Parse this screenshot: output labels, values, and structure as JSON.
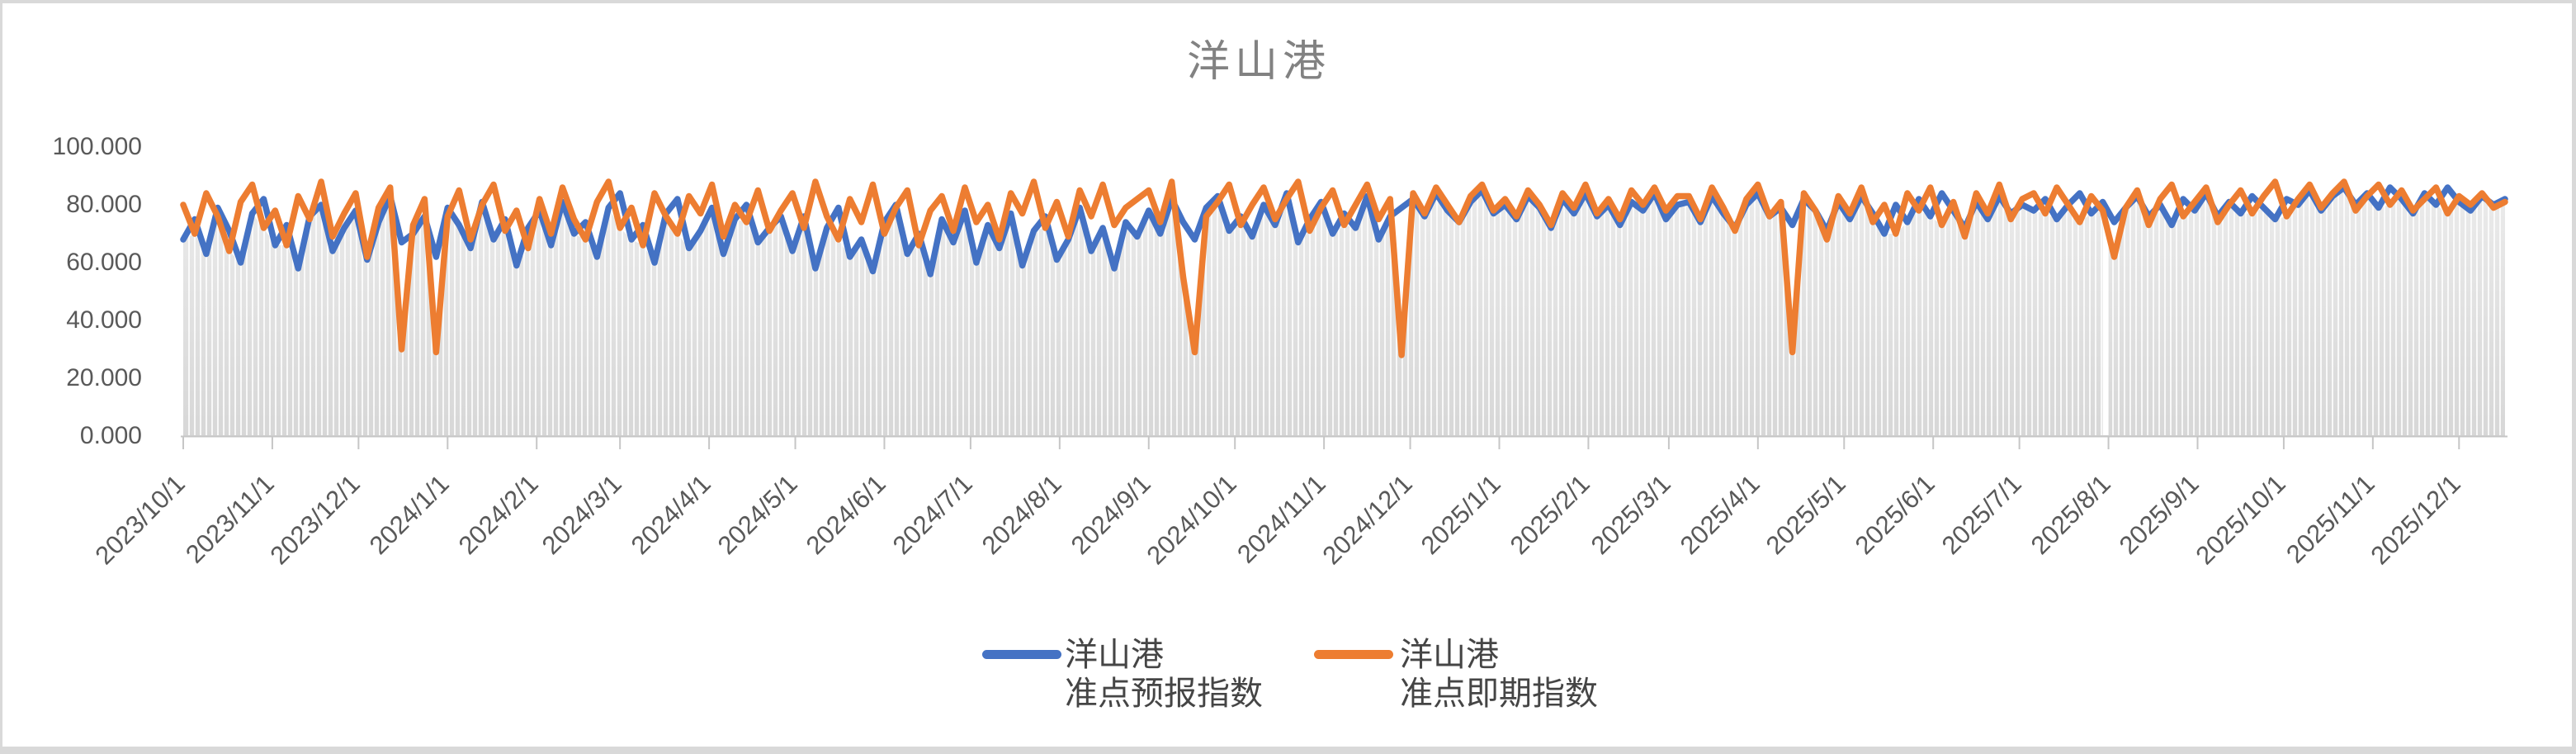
{
  "title": "洋山港",
  "colors": {
    "series_forecast": "#4472C4",
    "series_spot": "#ED7D31",
    "area_top": "#ebebeb",
    "area_bottom": "#d7d7d7",
    "axis_line": "#c6c6c6",
    "axis_text": "#595959",
    "title_text": "#828282",
    "legend_text": "#454545",
    "frame": "#d9d9d9",
    "stripe": "#ffffff"
  },
  "y_axis": {
    "labels": [
      "100.000",
      "80.000",
      "60.000",
      "40.000",
      "20.000",
      "0.000"
    ],
    "values": [
      100,
      80,
      60,
      40,
      20,
      0
    ]
  },
  "x_axis": {
    "ticks": [
      {
        "label": "2023/10/1",
        "day": 0
      },
      {
        "label": "2023/11/1",
        "day": 31
      },
      {
        "label": "2023/12/1",
        "day": 61
      },
      {
        "label": "2024/1/1",
        "day": 92
      },
      {
        "label": "2024/2/1",
        "day": 123
      },
      {
        "label": "2024/3/1",
        "day": 152
      },
      {
        "label": "2024/4/1",
        "day": 183
      },
      {
        "label": "2024/5/1",
        "day": 213
      },
      {
        "label": "2024/6/1",
        "day": 244
      },
      {
        "label": "2024/7/1",
        "day": 274
      },
      {
        "label": "2024/8/1",
        "day": 305
      },
      {
        "label": "2024/9/1",
        "day": 336
      },
      {
        "label": "2024/10/1",
        "day": 366
      },
      {
        "label": "2024/11/1",
        "day": 397
      },
      {
        "label": "2024/12/1",
        "day": 427
      },
      {
        "label": "2025/1/1",
        "day": 458
      },
      {
        "label": "2025/2/1",
        "day": 489
      },
      {
        "label": "2025/3/1",
        "day": 517
      },
      {
        "label": "2025/4/1",
        "day": 548
      },
      {
        "label": "2025/5/1",
        "day": 578
      },
      {
        "label": "2025/6/1",
        "day": 609
      },
      {
        "label": "2025/7/1",
        "day": 639
      },
      {
        "label": "2025/8/1",
        "day": 670
      },
      {
        "label": "2025/9/1",
        "day": 701
      },
      {
        "label": "2025/10/1",
        "day": 731
      },
      {
        "label": "2025/11/1",
        "day": 762
      },
      {
        "label": "2025/12/1",
        "day": 792
      }
    ]
  },
  "legend": {
    "items": [
      {
        "line1": "洋山港",
        "line2": "准点预报指数",
        "color": "#4472C4"
      },
      {
        "line1": "洋山港",
        "line2": "准点即期指数",
        "color": "#ED7D31"
      }
    ]
  },
  "chart_data": {
    "type": "line",
    "title": "洋山港",
    "xlabel": "",
    "ylabel": "",
    "ylim": [
      0,
      100
    ],
    "x_start_date": "2023/10/1",
    "x_end_date": "2025/12/18",
    "total_days": 808,
    "sample_interval_days": 4,
    "grid": false,
    "legend_position": "bottom",
    "series": [
      {
        "name": "洋山港准点预报指数",
        "color": "#4472C4",
        "values": [
          68,
          75,
          63,
          79,
          71,
          60,
          77,
          82,
          66,
          73,
          58,
          76,
          80,
          64,
          72,
          78,
          61,
          74,
          83,
          67,
          70,
          76,
          62,
          79,
          73,
          65,
          81,
          68,
          75,
          59,
          72,
          78,
          66,
          81,
          70,
          74,
          62,
          79,
          84,
          68,
          73,
          60,
          77,
          82,
          65,
          71,
          79,
          63,
          75,
          80,
          67,
          72,
          76,
          64,
          76,
          58,
          72,
          79,
          62,
          68,
          57,
          74,
          80,
          63,
          70,
          56,
          75,
          67,
          78,
          60,
          73,
          65,
          77,
          59,
          71,
          76,
          61,
          68,
          79,
          64,
          72,
          58,
          74,
          69,
          78,
          70,
          82,
          74,
          68,
          79,
          83,
          71,
          76,
          69,
          80,
          73,
          84,
          67,
          75,
          81,
          70,
          77,
          72,
          83,
          68,
          76,
          79,
          82,
          76,
          84,
          78,
          74,
          81,
          85,
          77,
          80,
          75,
          83,
          79,
          72,
          82,
          77,
          84,
          76,
          80,
          73,
          81,
          78,
          84,
          75,
          80,
          81,
          74,
          83,
          77,
          72,
          80,
          84,
          76,
          79,
          73,
          82,
          78,
          71,
          81,
          75,
          83,
          77,
          70,
          80,
          74,
          82,
          76,
          84,
          78,
          72,
          81,
          75,
          83,
          77,
          80,
          78,
          82,
          75,
          80,
          84,
          77,
          81,
          74,
          79,
          83,
          76,
          80,
          73,
          82,
          78,
          84,
          76,
          81,
          77,
          83,
          79,
          75,
          82,
          80,
          85,
          78,
          83,
          86,
          80,
          84,
          79,
          86,
          82,
          77,
          84,
          80,
          86,
          81,
          78,
          83,
          80,
          82
        ]
      },
      {
        "name": "洋山港准点即期指数",
        "color": "#ED7D31",
        "values": [
          80,
          70,
          84,
          76,
          64,
          81,
          87,
          72,
          78,
          66,
          83,
          75,
          88,
          69,
          77,
          84,
          62,
          79,
          86,
          30,
          73,
          82,
          29,
          76,
          85,
          68,
          80,
          87,
          71,
          78,
          65,
          82,
          70,
          86,
          75,
          68,
          81,
          88,
          72,
          79,
          66,
          84,
          76,
          70,
          83,
          77,
          87,
          69,
          80,
          74,
          85,
          71,
          78,
          84,
          72,
          88,
          76,
          68,
          82,
          74,
          87,
          70,
          79,
          85,
          66,
          78,
          83,
          71,
          86,
          74,
          80,
          68,
          84,
          77,
          88,
          72,
          81,
          69,
          85,
          76,
          87,
          73,
          79,
          82,
          85,
          74,
          88,
          55,
          29,
          76,
          81,
          87,
          73,
          80,
          86,
          75,
          82,
          88,
          71,
          79,
          85,
          73,
          80,
          87,
          75,
          82,
          28,
          84,
          77,
          86,
          80,
          74,
          83,
          87,
          78,
          82,
          76,
          85,
          80,
          73,
          84,
          79,
          87,
          77,
          82,
          75,
          85,
          80,
          86,
          78,
          83,
          83,
          75,
          86,
          79,
          71,
          82,
          87,
          76,
          81,
          29,
          84,
          78,
          68,
          83,
          77,
          86,
          74,
          80,
          70,
          84,
          78,
          86,
          73,
          81,
          69,
          84,
          77,
          87,
          75,
          82,
          84,
          77,
          86,
          80,
          74,
          83,
          78,
          62,
          79,
          85,
          73,
          82,
          87,
          76,
          81,
          86,
          74,
          80,
          85,
          77,
          83,
          88,
          76,
          82,
          87,
          79,
          84,
          88,
          78,
          83,
          87,
          80,
          85,
          78,
          82,
          86,
          77,
          83,
          80,
          84,
          79,
          81
        ]
      }
    ],
    "annotations": {
      "orange_deep_dips_dates": [
        "2023/12/16",
        "2023/12/28",
        "2024/9/17",
        "2024/11/28",
        "2025/4/13"
      ],
      "orange_deep_dip_value": 29,
      "missing_data_gap_date": "2025/7/31",
      "background": "gray striped daily columns following the lower envelope of the two lines"
    }
  }
}
